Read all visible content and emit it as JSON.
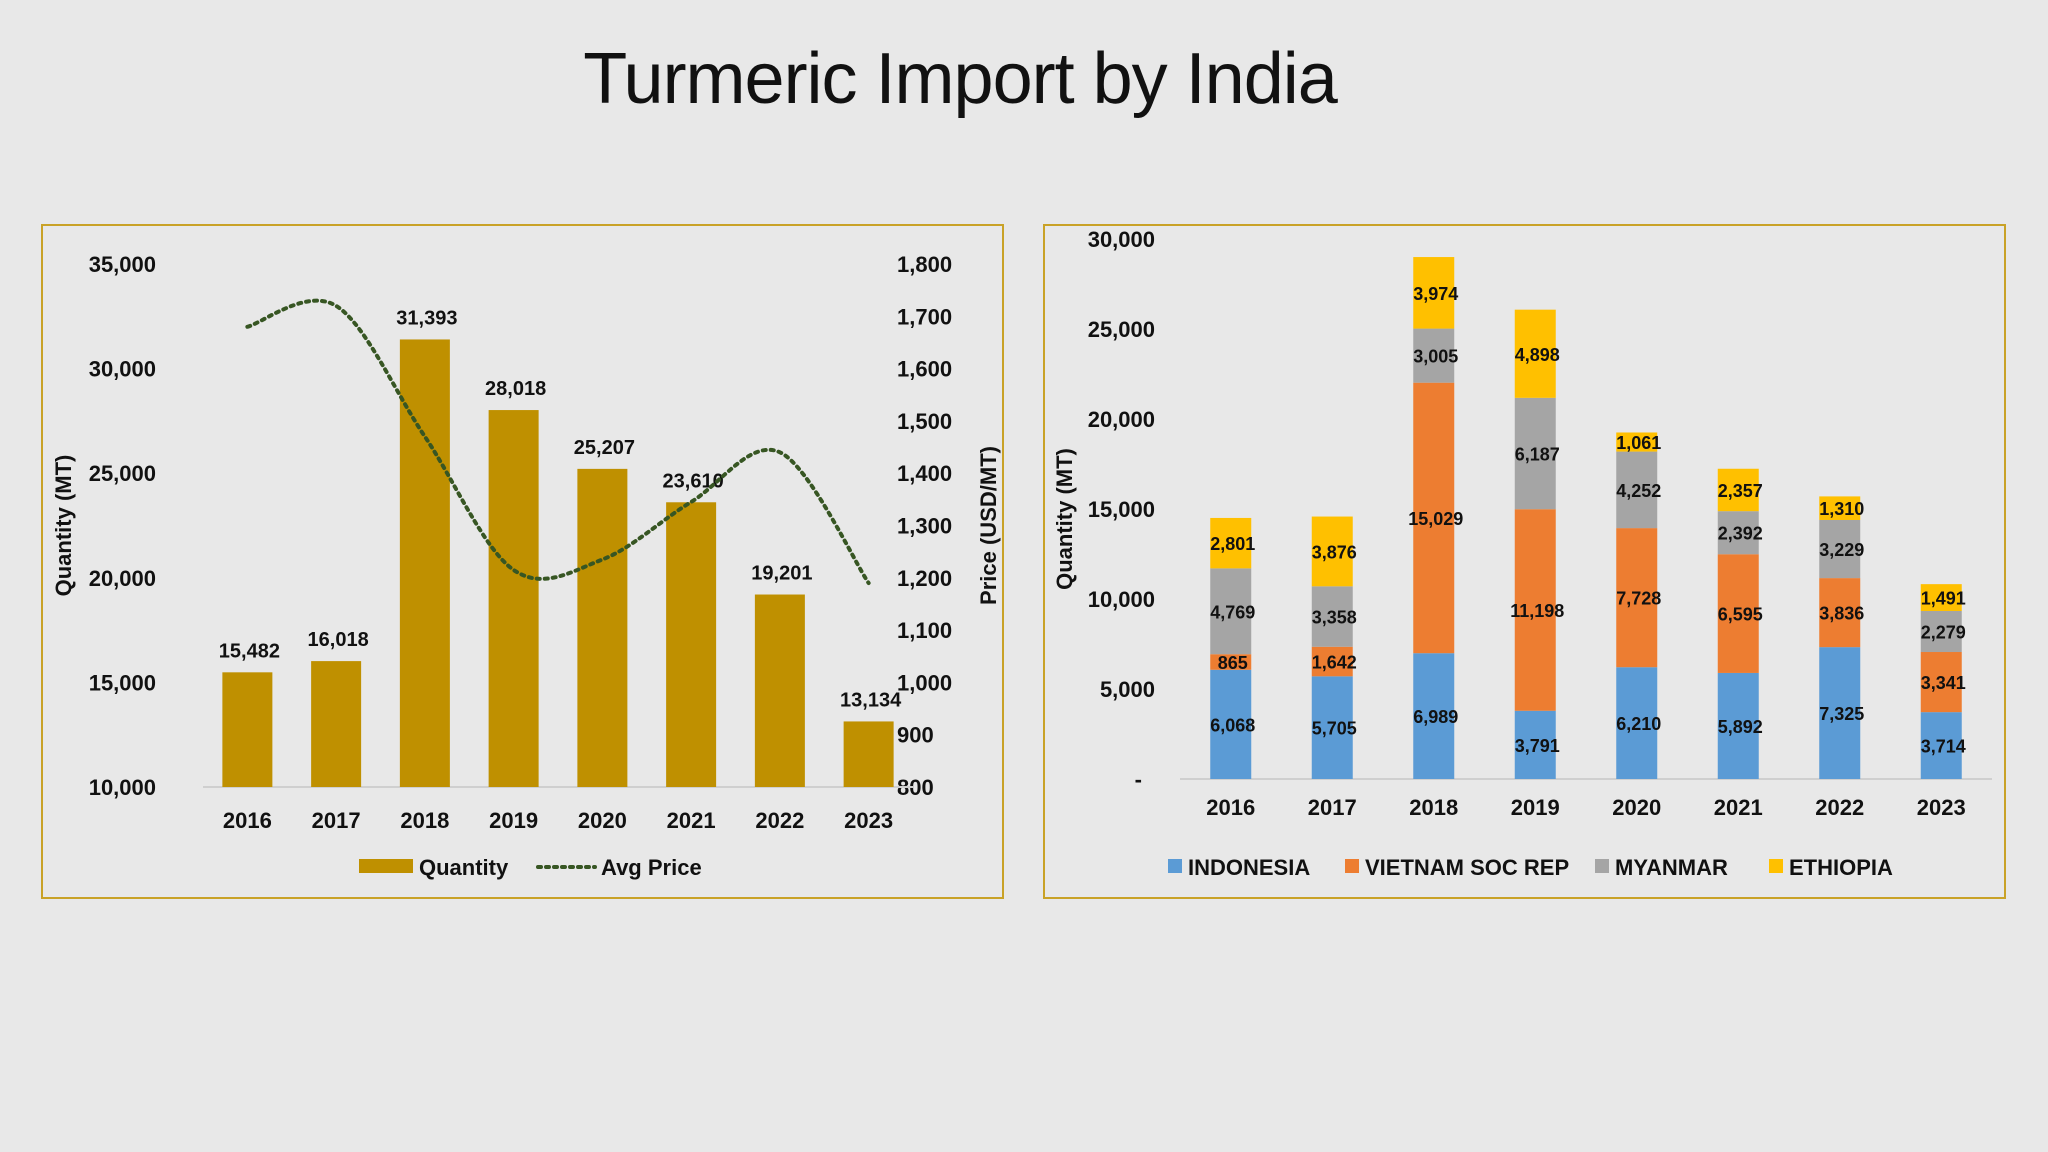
{
  "title": "Turmeric Import by India",
  "chart_data": [
    {
      "type": "bar",
      "title": "",
      "categories": [
        "2016",
        "2017",
        "2018",
        "2019",
        "2020",
        "2021",
        "2022",
        "2023"
      ],
      "series": [
        {
          "name": "Quantity",
          "type": "bar",
          "axis": "left",
          "color": "#bf9000",
          "values": [
            15482,
            16018,
            31393,
            28018,
            25207,
            23610,
            19201,
            13134
          ],
          "labels": [
            "15,482",
            "16,018",
            "31,393",
            "28,018",
            "25,207",
            "23,610",
            "19,201",
            "13,134"
          ]
        },
        {
          "name": "Avg Price",
          "type": "line",
          "style": "dotted",
          "axis": "right",
          "color": "#375623",
          "values": [
            1680,
            1720,
            1470,
            1215,
            1235,
            1345,
            1440,
            1190
          ]
        }
      ],
      "xlabel": "",
      "ylabel": "Quantity (MT)",
      "ylabel_right": "Price (USD/MT)",
      "ylim": [
        10000,
        35000
      ],
      "yticks": [
        "10,000",
        "15,000",
        "20,000",
        "25,000",
        "30,000",
        "35,000"
      ],
      "ylim_right": [
        800,
        1800
      ],
      "yticks_right": [
        "800",
        "900",
        "1,000",
        "1,100",
        "1,200",
        "1,300",
        "1,400",
        "1,500",
        "1,600",
        "1,700",
        "1,800"
      ],
      "grid": false,
      "legend": "bottom"
    },
    {
      "type": "bar",
      "stacked": true,
      "title": "",
      "categories": [
        "2016",
        "2017",
        "2018",
        "2019",
        "2020",
        "2021",
        "2022",
        "2023"
      ],
      "series": [
        {
          "name": "INDONESIA",
          "color": "#5b9bd5",
          "values": [
            6068,
            5705,
            6989,
            3791,
            6210,
            5892,
            7325,
            3714
          ],
          "labels": [
            "6,068",
            "5,705",
            "6,989",
            "3,791",
            "6,210",
            "5,892",
            "7,325",
            "3,714"
          ]
        },
        {
          "name": "VIETNAM SOC REP",
          "color": "#ed7d31",
          "values": [
            865,
            1642,
            15029,
            11198,
            7728,
            6595,
            3836,
            3341
          ],
          "labels": [
            "865",
            "1,642",
            "15,029",
            "11,198",
            "7,728",
            "6,595",
            "3,836",
            "3,341"
          ]
        },
        {
          "name": "MYANMAR",
          "color": "#a5a5a5",
          "values": [
            4769,
            3358,
            3005,
            6187,
            4252,
            2392,
            3229,
            2279
          ],
          "labels": [
            "4,769",
            "3,358",
            "3,005",
            "6,187",
            "4,252",
            "2,392",
            "3,229",
            "2,279"
          ]
        },
        {
          "name": "ETHIOPIA",
          "color": "#ffc000",
          "values": [
            2801,
            3876,
            3974,
            4898,
            1061,
            2357,
            1310,
            1491
          ],
          "labels": [
            "2,801",
            "3,876",
            "3,974",
            "4,898",
            "1,061",
            "2,357",
            "1,310",
            "1,491"
          ]
        }
      ],
      "xlabel": "",
      "ylabel": "Quantity (MT)",
      "ylim": [
        0,
        30000
      ],
      "yticks": [
        "-",
        "5,000",
        "10,000",
        "15,000",
        "20,000",
        "25,000",
        "30,000"
      ],
      "grid": false,
      "legend": "bottom"
    }
  ]
}
